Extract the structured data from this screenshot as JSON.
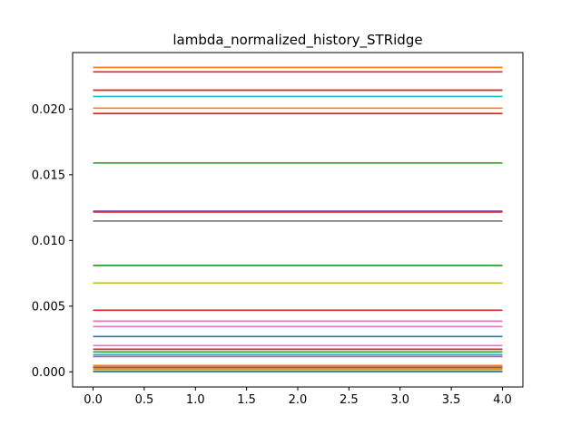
{
  "chart_data": {
    "type": "line",
    "title": "lambda_normalized_history_STRidge",
    "xlabel": "",
    "ylabel": "",
    "x": [
      0,
      1,
      2,
      3,
      4
    ],
    "xlim": [
      -0.2,
      4.2
    ],
    "ylim": [
      -0.00115,
      0.0243
    ],
    "x_ticks": [
      "0.0",
      "0.5",
      "1.0",
      "1.5",
      "2.0",
      "2.5",
      "3.0",
      "3.5",
      "4.0"
    ],
    "x_tick_values": [
      0,
      0.5,
      1,
      1.5,
      2,
      2.5,
      3,
      3.5,
      4
    ],
    "y_ticks": [
      "0.000",
      "0.005",
      "0.010",
      "0.015",
      "0.020"
    ],
    "y_tick_values": [
      0,
      0.005,
      0.01,
      0.015,
      0.02
    ],
    "grid": false,
    "legend": "none",
    "series": [
      {
        "color": "#ff7f0e",
        "values": [
          0.02317,
          0.02317,
          0.02317,
          0.02317,
          0.02317
        ]
      },
      {
        "color": "#d62728",
        "values": [
          0.02283,
          0.02283,
          0.02283,
          0.02283,
          0.02283
        ]
      },
      {
        "color": "#d62728",
        "values": [
          0.02144,
          0.02144,
          0.02144,
          0.02144,
          0.02144
        ]
      },
      {
        "color": "#17becf",
        "values": [
          0.02096,
          0.02096,
          0.02096,
          0.02096,
          0.02096
        ]
      },
      {
        "color": "#ff7f0e",
        "values": [
          0.02007,
          0.02007,
          0.02007,
          0.02007,
          0.02007
        ]
      },
      {
        "color": "#d62728",
        "values": [
          0.01966,
          0.01966,
          0.01966,
          0.01966,
          0.01966
        ]
      },
      {
        "color": "#2ca02c",
        "values": [
          0.0159,
          0.0159,
          0.0159,
          0.0159,
          0.0159
        ]
      },
      {
        "color": "#9467bd",
        "values": [
          0.01224,
          0.01224,
          0.01224,
          0.01224,
          0.01224
        ]
      },
      {
        "color": "#d62728",
        "values": [
          0.01217,
          0.01217,
          0.01217,
          0.01217,
          0.01217
        ]
      },
      {
        "color": "#7f7f7f",
        "values": [
          0.01148,
          0.01148,
          0.01148,
          0.01148,
          0.01148
        ]
      },
      {
        "color": "#2ca02c",
        "values": [
          0.0081,
          0.0081,
          0.0081,
          0.0081,
          0.0081
        ]
      },
      {
        "color": "#bcbd22",
        "values": [
          0.00676,
          0.00676,
          0.00676,
          0.00676,
          0.00676
        ]
      },
      {
        "color": "#d62728",
        "values": [
          0.00469,
          0.00469,
          0.00469,
          0.00469,
          0.00469
        ]
      },
      {
        "color": "#e377c2",
        "values": [
          0.00386,
          0.00386,
          0.00386,
          0.00386,
          0.00386
        ]
      },
      {
        "color": "#e377c2",
        "values": [
          0.00345,
          0.00345,
          0.00345,
          0.00345,
          0.00345
        ]
      },
      {
        "color": "#1f77b4",
        "values": [
          0.00269,
          0.00269,
          0.00269,
          0.00269,
          0.00269
        ]
      },
      {
        "color": "#e377c2",
        "values": [
          0.002,
          0.002,
          0.002,
          0.002,
          0.002
        ]
      },
      {
        "color": "#d62728",
        "values": [
          0.00172,
          0.00172,
          0.00172,
          0.00172,
          0.00172
        ]
      },
      {
        "color": "#2ca02c",
        "values": [
          0.00152,
          0.00152,
          0.00152,
          0.00152,
          0.00152
        ]
      },
      {
        "color": "#17becf",
        "values": [
          0.00131,
          0.00131,
          0.00131,
          0.00131,
          0.00131
        ]
      },
      {
        "color": "#9467bd",
        "values": [
          0.00117,
          0.00117,
          0.00117,
          0.00117,
          0.00117
        ]
      },
      {
        "color": "#ff7f0e",
        "values": [
          0.00048,
          0.00048,
          0.00048,
          0.00048,
          0.00048
        ]
      },
      {
        "color": "#8c564b",
        "values": [
          0.00034,
          0.00034,
          0.00034,
          0.00034,
          0.00034
        ]
      },
      {
        "color": "#ff7f0e",
        "values": [
          0.00021,
          0.00021,
          0.00021,
          0.00021,
          0.00021
        ]
      },
      {
        "color": "#bcbd22",
        "values": [
          7e-05,
          7e-05,
          7e-05,
          7e-05,
          7e-05
        ]
      },
      {
        "color": "#1f77b4",
        "values": [
          2e-05,
          2e-05,
          2e-05,
          2e-05,
          2e-05
        ]
      }
    ]
  }
}
